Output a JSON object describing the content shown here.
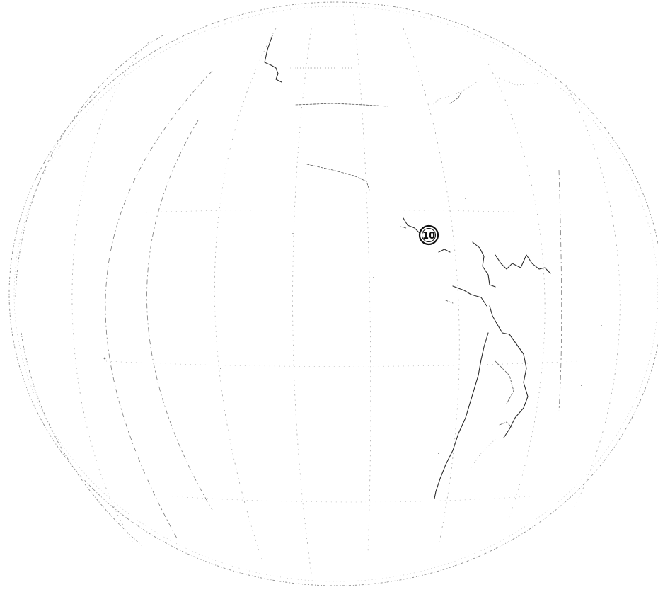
{
  "map": {
    "projection": "orthographic-globe",
    "markers": [
      {
        "label": "10"
      }
    ]
  }
}
